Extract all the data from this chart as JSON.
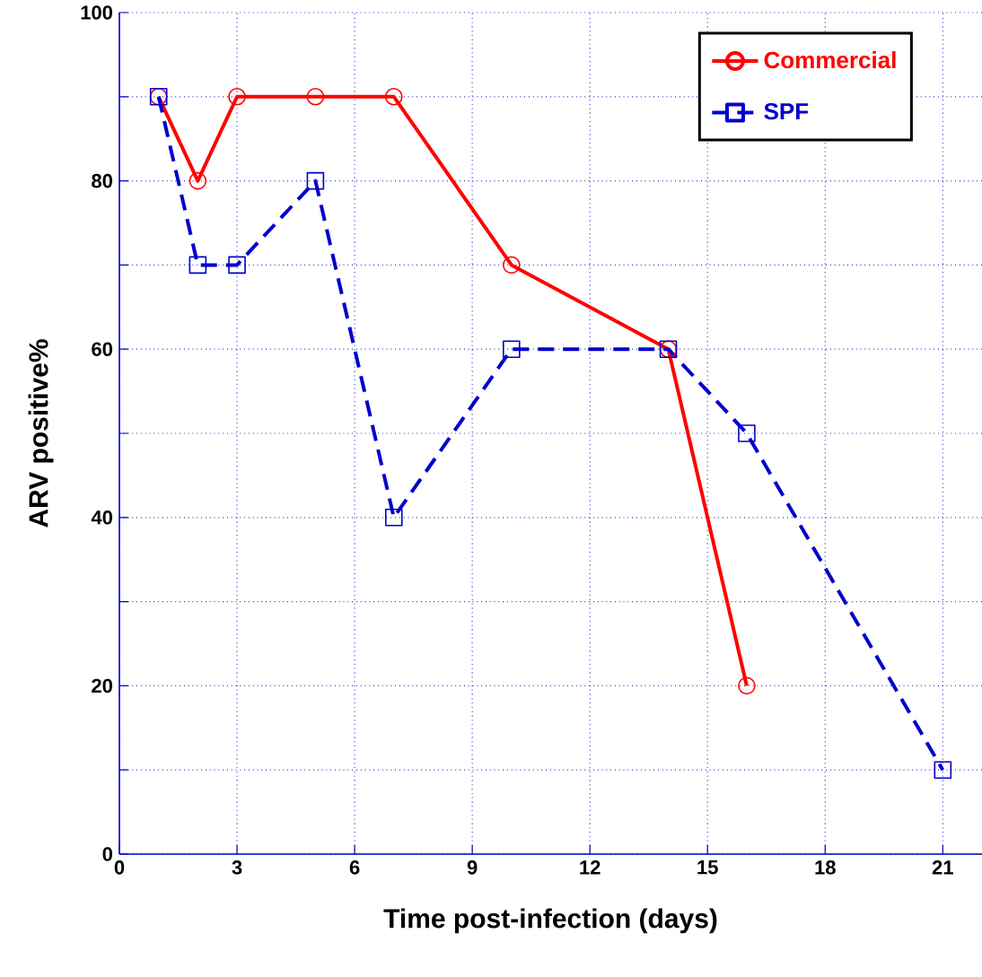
{
  "chart_data": {
    "type": "line",
    "xlabel": "Time post-infection (days)",
    "ylabel": "ARV positive%",
    "xlim": [
      0,
      22
    ],
    "ylim": [
      0,
      100
    ],
    "xticks": [
      0,
      3,
      6,
      9,
      12,
      15,
      18,
      21
    ],
    "yticks": [
      0,
      {
        "value": 10,
        "label": null
      },
      20,
      {
        "value": 30,
        "label": null
      },
      40,
      {
        "value": 50,
        "label": null
      },
      60,
      {
        "value": 70,
        "label": null
      },
      80,
      {
        "value": 90,
        "label": null
      },
      100
    ],
    "grid": true,
    "legend": "top right",
    "series": [
      {
        "name": "Commercial",
        "color": "#ff0000",
        "marker": "circle",
        "line_style": "solid",
        "x": [
          1,
          2,
          3,
          5,
          7,
          10,
          14,
          16
        ],
        "values": [
          90,
          80,
          90,
          90,
          90,
          70,
          60,
          20
        ]
      },
      {
        "name": "SPF",
        "color": "#0000cc",
        "marker": "square",
        "line_style": "dashed",
        "x": [
          1,
          2,
          3,
          5,
          7,
          10,
          14,
          16,
          21
        ],
        "values": [
          90,
          70,
          70,
          80,
          40,
          60,
          60,
          50,
          10
        ]
      }
    ]
  }
}
